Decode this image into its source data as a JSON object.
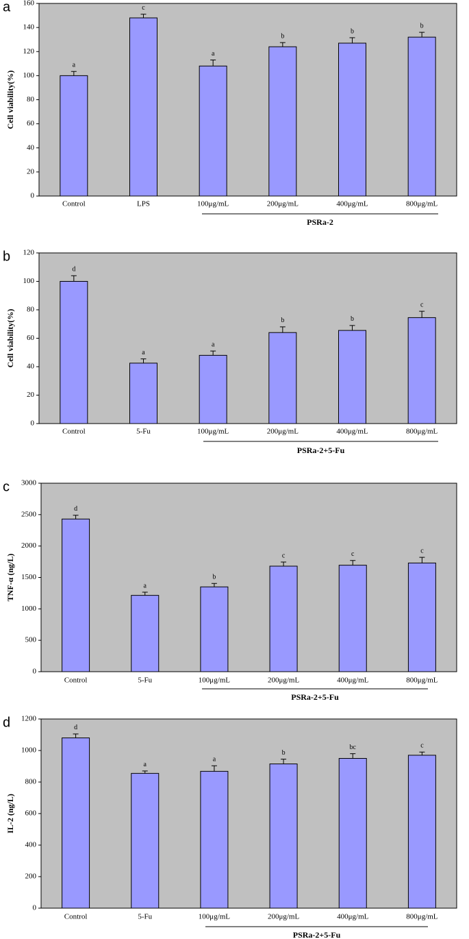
{
  "chart_data": [
    {
      "type": "bar",
      "panel_label": "a",
      "y_label": "Cell viability(%)",
      "categories": [
        "Control",
        "LPS",
        "100μg/mL",
        "200μg/mL",
        "400μg/mL",
        "800μg/mL"
      ],
      "values": [
        100,
        148,
        108,
        124,
        127,
        132
      ],
      "errors": [
        3.5,
        3,
        5,
        3.5,
        4.5,
        4
      ],
      "letters": [
        "a",
        "c",
        "a",
        "b",
        "b",
        "b"
      ],
      "group_label": "PSRa-2",
      "ylim": [
        0,
        160
      ],
      "yticks": [
        0,
        20,
        40,
        60,
        80,
        100,
        120,
        140,
        160
      ],
      "color": "#9999ff",
      "background": "#c0c0c0"
    },
    {
      "type": "bar",
      "panel_label": "b",
      "y_label": "Cell viability(%)",
      "categories": [
        "Control",
        "5-Fu",
        "100μg/mL",
        "200μg/mL",
        "400μg/mL",
        "800μg/mL"
      ],
      "values": [
        100,
        42.5,
        48,
        64,
        65.5,
        74.5
      ],
      "errors": [
        4,
        3,
        3,
        4,
        3.5,
        4.5
      ],
      "letters": [
        "d",
        "a",
        "a",
        "b",
        "b",
        "c"
      ],
      "group_label": "PSRa-2+5-Fu",
      "ylim": [
        0,
        120
      ],
      "yticks": [
        0,
        20,
        40,
        60,
        80,
        100,
        120
      ],
      "color": "#9999ff",
      "background": "#c0c0c0"
    },
    {
      "type": "bar",
      "panel_label": "c",
      "y_label": "TNF-α (ng/L)",
      "categories": [
        "Control",
        "5-Fu",
        "100μg/mL",
        "200μg/mL",
        "400μg/mL",
        "800μg/mL"
      ],
      "values": [
        2430,
        1215,
        1350,
        1680,
        1695,
        1730
      ],
      "errors": [
        60,
        50,
        55,
        65,
        75,
        90
      ],
      "letters": [
        "d",
        "a",
        "b",
        "c",
        "c",
        "c"
      ],
      "group_label": "PSRa-2+5-Fu",
      "ylim": [
        0,
        3000
      ],
      "yticks": [
        0,
        500,
        1000,
        1500,
        2000,
        2500,
        3000
      ],
      "color": "#9999ff",
      "background": "#c0c0c0"
    },
    {
      "type": "bar",
      "panel_label": "d",
      "y_label": "IL-2 (ng/L)",
      "categories": [
        "Control",
        "5-Fu",
        "100μg/mL",
        "200μg/mL",
        "400μg/mL",
        "800μg/mL"
      ],
      "values": [
        1080,
        855,
        868,
        915,
        950,
        970
      ],
      "errors": [
        25,
        15,
        35,
        30,
        30,
        20
      ],
      "letters": [
        "d",
        "a",
        "a",
        "b",
        "bc",
        "c"
      ],
      "group_label": "PSRa-2+5-Fu",
      "ylim": [
        0,
        1200
      ],
      "yticks": [
        0,
        200,
        400,
        600,
        800,
        1000,
        1200
      ],
      "color": "#9999ff",
      "background": "#c0c0c0"
    }
  ]
}
